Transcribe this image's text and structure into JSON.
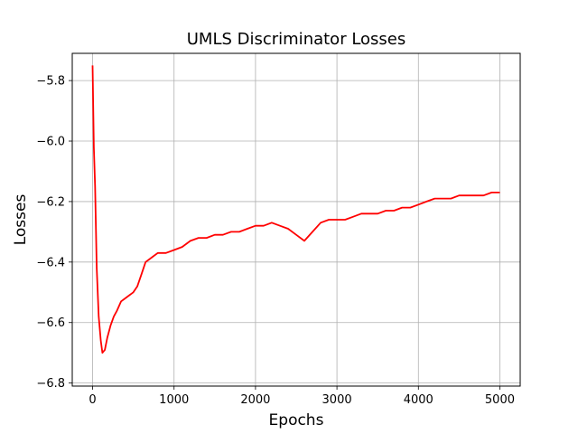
{
  "chart_data": {
    "type": "line",
    "title": "UMLS Discriminator Losses",
    "xlabel": "Epochs",
    "ylabel": "Losses",
    "xlim": [
      -250,
      5250
    ],
    "ylim": [
      -6.81,
      -5.71
    ],
    "x_ticks": [
      0,
      1000,
      2000,
      3000,
      4000,
      5000
    ],
    "x_tick_labels": [
      "0",
      "1000",
      "2000",
      "3000",
      "4000",
      "5000"
    ],
    "y_ticks": [
      -5.8,
      -6.0,
      -6.2,
      -6.4,
      -6.6,
      -6.8
    ],
    "y_tick_labels": [
      "−5.8",
      "−6.0",
      "−6.2",
      "−6.4",
      "−6.6",
      "−6.8"
    ],
    "grid": true,
    "series": [
      {
        "color": "#ff0000",
        "x": [
          0,
          15,
          30,
          50,
          75,
          100,
          120,
          150,
          180,
          220,
          260,
          300,
          350,
          400,
          450,
          500,
          550,
          600,
          650,
          700,
          750,
          800,
          900,
          1000,
          1100,
          1200,
          1300,
          1400,
          1500,
          1600,
          1700,
          1800,
          1900,
          2000,
          2100,
          2200,
          2300,
          2400,
          2500,
          2600,
          2700,
          2800,
          2900,
          3000,
          3100,
          3200,
          3300,
          3400,
          3500,
          3600,
          3700,
          3800,
          3900,
          4000,
          4100,
          4200,
          4300,
          4400,
          4500,
          4600,
          4700,
          4800,
          4900,
          5000
        ],
        "y": [
          -5.75,
          -6.02,
          -6.15,
          -6.42,
          -6.58,
          -6.66,
          -6.7,
          -6.69,
          -6.65,
          -6.61,
          -6.58,
          -6.56,
          -6.53,
          -6.52,
          -6.51,
          -6.5,
          -6.48,
          -6.44,
          -6.4,
          -6.39,
          -6.38,
          -6.37,
          -6.37,
          -6.36,
          -6.35,
          -6.33,
          -6.32,
          -6.32,
          -6.31,
          -6.31,
          -6.3,
          -6.3,
          -6.29,
          -6.28,
          -6.28,
          -6.27,
          -6.28,
          -6.29,
          -6.31,
          -6.33,
          -6.3,
          -6.27,
          -6.26,
          -6.26,
          -6.26,
          -6.25,
          -6.24,
          -6.24,
          -6.24,
          -6.23,
          -6.23,
          -6.22,
          -6.22,
          -6.21,
          -6.2,
          -6.19,
          -6.19,
          -6.19,
          -6.18,
          -6.18,
          -6.18,
          -6.18,
          -6.17,
          -6.17
        ]
      }
    ]
  }
}
